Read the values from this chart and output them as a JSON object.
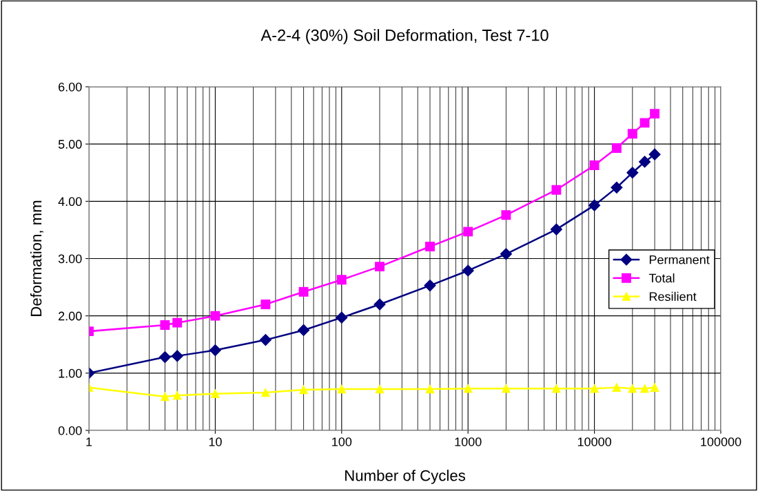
{
  "chart_data": {
    "type": "line",
    "title": "A-2-4 (30%) Soil Deformation, Test 7-10",
    "xlabel": "Number of Cycles",
    "ylabel": "Deformation, mm",
    "log": "x",
    "grid": true,
    "legend": "right",
    "x": [
      1,
      4,
      5,
      10,
      25,
      50,
      100,
      200,
      500,
      1000,
      2000,
      5000,
      10000,
      15000,
      20000,
      25000,
      30000
    ],
    "xlim": [
      1,
      100000
    ],
    "xticks": [
      1,
      10,
      100,
      1000,
      10000,
      100000
    ],
    "ylim": [
      0,
      6
    ],
    "yticks": [
      {
        "value": 0,
        "label": "0.00"
      },
      {
        "value": 1,
        "label": "1.00"
      },
      {
        "value": 2,
        "label": "2.00"
      },
      {
        "value": 3,
        "label": "3.00"
      },
      {
        "value": 4,
        "label": "4.00"
      },
      {
        "value": 5,
        "label": "5.00"
      },
      {
        "value": 6,
        "label": "6.00"
      }
    ],
    "series": [
      {
        "name": "Permanent",
        "color": "#000080",
        "marker": "diamond",
        "values": [
          1.0,
          1.28,
          1.3,
          1.4,
          1.58,
          1.75,
          1.97,
          2.2,
          2.53,
          2.79,
          3.08,
          3.51,
          3.93,
          4.24,
          4.5,
          4.69,
          4.82
        ]
      },
      {
        "name": "Total",
        "color": "#ff00ff",
        "marker": "square",
        "values": [
          1.73,
          1.84,
          1.88,
          2.0,
          2.2,
          2.42,
          2.63,
          2.86,
          3.21,
          3.47,
          3.76,
          4.2,
          4.63,
          4.93,
          5.18,
          5.37,
          5.53
        ]
      },
      {
        "name": "Resilient",
        "color": "#ffff00",
        "marker": "triangle",
        "values": [
          0.75,
          0.59,
          0.61,
          0.64,
          0.66,
          0.71,
          0.72,
          0.72,
          0.72,
          0.73,
          0.73,
          0.73,
          0.73,
          0.75,
          0.73,
          0.73,
          0.75
        ]
      }
    ]
  }
}
